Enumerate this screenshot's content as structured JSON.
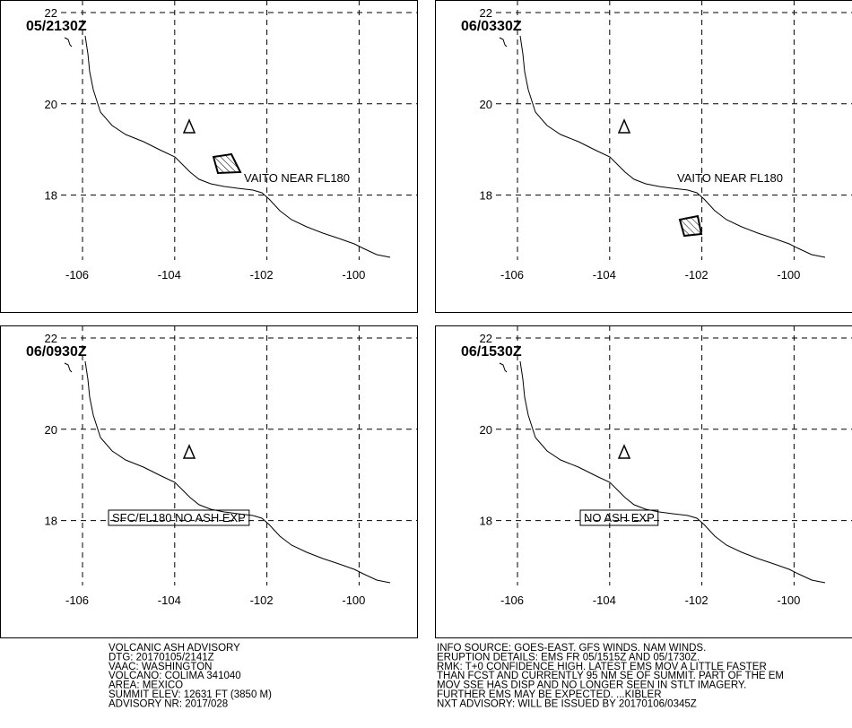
{
  "map": {
    "xticks": [
      -106,
      -104,
      -102,
      -100
    ],
    "yticks": [
      22,
      20,
      18
    ],
    "panels": [
      {
        "time": "05/2130Z",
        "annotation": "VAITO NEAR FL180"
      },
      {
        "time": "06/0330Z",
        "annotation": "VAITO NEAR FL180"
      },
      {
        "time": "06/0930Z",
        "annotation": "SFC/FL180 NO ASH EXP"
      },
      {
        "time": "06/1530Z",
        "annotation": "NO ASH EXP"
      }
    ]
  },
  "advisory": {
    "left": [
      "VOLCANIC ASH ADVISORY",
      "DTG: 20170105/2141Z",
      "VAAC: WASHINGTON",
      "VOLCANO: COLIMA 341040",
      "AREA: MEXICO",
      "SUMMIT ELEV: 12631 FT (3850 M)",
      "ADVISORY NR: 2017/028"
    ],
    "right": [
      "INFO SOURCE: GOES-EAST. GFS WINDS. NAM WINDS.",
      "ERUPTION DETAILS: EMS FR 05/1515Z AND 05/1730Z.",
      "RMK: T+0 CONFIDENCE HIGH. LATEST EMS MOV A LITTLE FASTER",
      "THAN FCST AND CURRENTLY 95 NM SE OF SUMMIT. PART OF THE EM",
      "MOV SSE HAS DISP AND NO LONGER SEEN IN STLT IMAGERY.",
      "FURTHER EMS MAY BE EXPECTED. ...KIBLER",
      "NXT ADVISORY: WILL BE ISSUED BY 20170106/0345Z"
    ]
  }
}
